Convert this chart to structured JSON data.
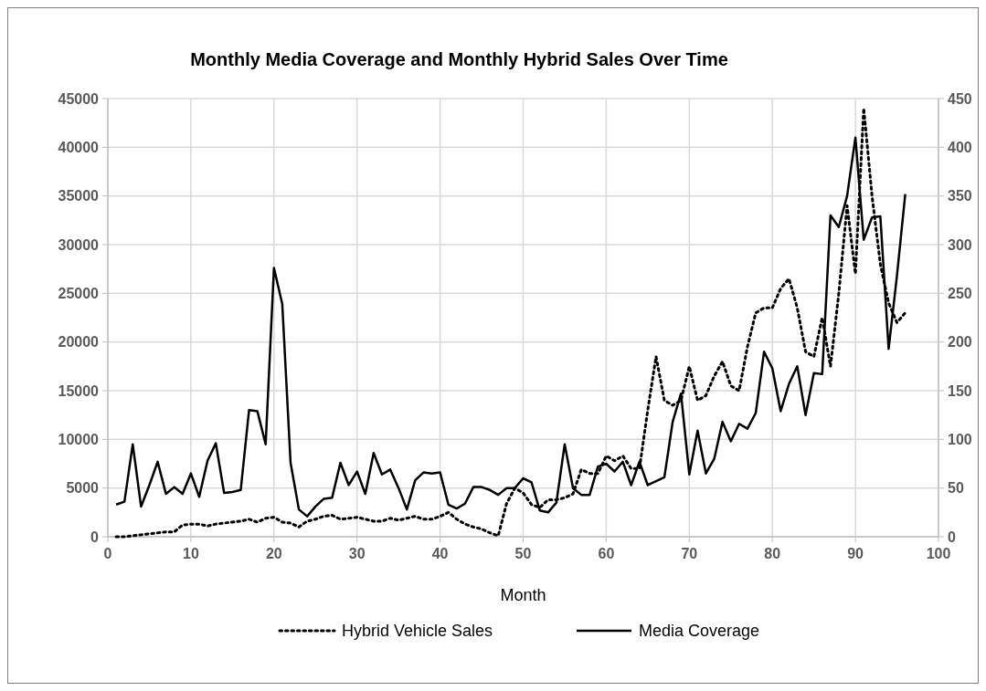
{
  "chart_data": {
    "type": "line",
    "title": "Monthly Media Coverage and Monthly Hybrid Sales Over Time",
    "xlabel": "Month",
    "x": [
      1,
      2,
      3,
      4,
      5,
      6,
      7,
      8,
      9,
      10,
      11,
      12,
      13,
      14,
      15,
      16,
      17,
      18,
      19,
      20,
      21,
      22,
      23,
      24,
      25,
      26,
      27,
      28,
      29,
      30,
      31,
      32,
      33,
      34,
      35,
      36,
      37,
      38,
      39,
      40,
      41,
      42,
      43,
      44,
      45,
      46,
      47,
      48,
      49,
      50,
      51,
      52,
      53,
      54,
      55,
      56,
      57,
      58,
      59,
      60,
      61,
      62,
      63,
      64,
      65,
      66,
      67,
      68,
      69,
      70,
      71,
      72,
      73,
      74,
      75,
      76,
      77,
      78,
      79,
      80,
      81,
      82,
      83,
      84,
      85,
      86,
      87,
      88,
      89,
      90,
      91,
      92,
      93,
      94,
      95,
      96
    ],
    "series": [
      {
        "name": "Hybrid Vehicle Sales",
        "color": "#000000",
        "line_style": "dotted",
        "values": [
          0,
          0,
          100,
          200,
          300,
          400,
          500,
          500,
          1200,
          1300,
          1300,
          1100,
          1300,
          1400,
          1500,
          1600,
          1800,
          1500,
          1900,
          2000,
          1500,
          1400,
          1000,
          1600,
          1800,
          2100,
          2200,
          1800,
          1900,
          2000,
          1800,
          1600,
          1600,
          1900,
          1700,
          1900,
          2100,
          1800,
          1800,
          2100,
          2500,
          1800,
          1300,
          1000,
          800,
          400,
          100,
          3400,
          5000,
          4500,
          3300,
          3000,
          3800,
          3800,
          4000,
          4400,
          6900,
          6500,
          6500,
          8300,
          7800,
          8300,
          7000,
          7000,
          13000,
          18500,
          14000,
          13500,
          14000,
          17500,
          14000,
          14500,
          16500,
          18000,
          15500,
          15000,
          19500,
          23000,
          23500,
          23500,
          25500,
          26500,
          23500,
          19000,
          18500,
          22500,
          17500,
          25000,
          34000,
          27000,
          44000,
          35000,
          28000,
          24000,
          22000,
          23000
        ]
      },
      {
        "name": "Media Coverage",
        "color": "#000000",
        "line_style": "solid",
        "axis": "y2",
        "values": [
          33,
          36,
          95,
          31,
          53,
          77,
          44,
          51,
          44,
          65,
          41,
          78,
          96,
          45,
          46,
          48,
          130,
          129,
          95,
          276,
          239,
          76,
          28,
          21,
          31,
          39,
          40,
          76,
          53,
          67,
          44,
          86,
          64,
          69,
          50,
          28,
          58,
          66,
          65,
          66,
          33,
          29,
          34,
          51,
          51,
          48,
          43,
          50,
          50,
          60,
          56,
          27,
          25,
          35,
          95,
          50,
          43,
          43,
          72,
          75,
          67,
          77,
          53,
          77,
          53,
          57,
          61,
          118,
          147,
          64,
          109,
          65,
          80,
          118,
          98,
          116,
          111,
          127,
          190,
          173,
          129,
          157,
          175,
          125,
          168,
          167,
          330,
          318,
          350,
          410,
          305,
          328,
          329,
          193,
          268,
          352
        ]
      }
    ],
    "xlim": [
      0,
      100
    ],
    "xticks": [
      0,
      10,
      20,
      30,
      40,
      50,
      60,
      70,
      80,
      90,
      100
    ],
    "ylim": [
      0,
      45000
    ],
    "yticks": [
      0,
      5000,
      10000,
      15000,
      20000,
      25000,
      30000,
      35000,
      40000,
      45000
    ],
    "y2lim": [
      0,
      450
    ],
    "y2ticks": [
      0,
      50,
      100,
      150,
      200,
      250,
      300,
      350,
      400,
      450
    ],
    "grid": true,
    "legend": "bottom"
  }
}
